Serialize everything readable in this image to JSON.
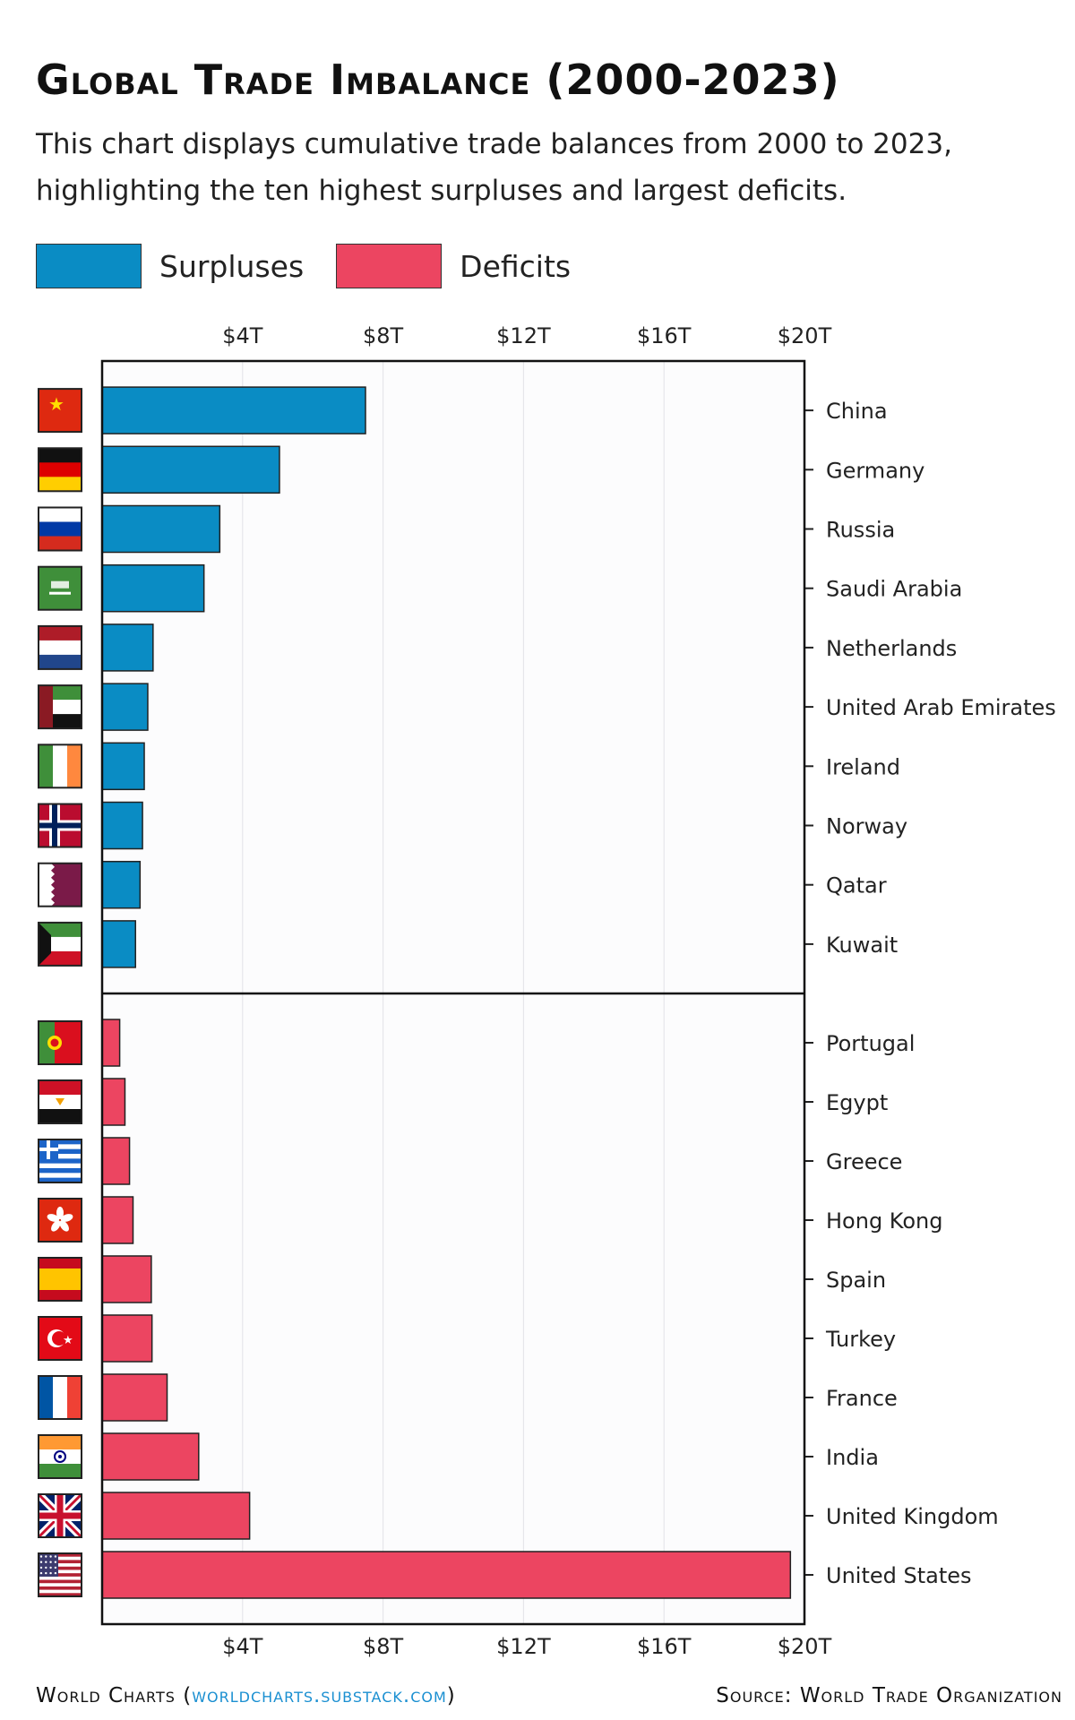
{
  "title": "Global Trade Imbalance (2000-2023)",
  "subtitle": "This chart displays cumulative trade balances from 2000 to 2023, highlighting the ten highest surpluses and largest deficits.",
  "legend": {
    "surpluses": "Surpluses",
    "deficits": "Deficits"
  },
  "colors": {
    "surpluses": "#0a8cc4",
    "deficits": "#ec4561"
  },
  "footer": {
    "left_prefix": "World Charts (",
    "left_link": "worldcharts.substack.com",
    "left_suffix": ")",
    "right": "Source: World Trade Organization"
  },
  "chart_data": {
    "type": "bar",
    "orientation": "horizontal",
    "xlim": [
      0,
      20
    ],
    "x_ticks": [
      "$4T",
      "$8T",
      "$12T",
      "$16T",
      "$20T"
    ],
    "x_tick_values": [
      4,
      8,
      12,
      16,
      20
    ],
    "grid": true,
    "series": [
      {
        "name": "Surpluses",
        "categories": [
          "China",
          "Germany",
          "Russia",
          "Saudi Arabia",
          "Netherlands",
          "United Arab Emirates",
          "Ireland",
          "Norway",
          "Qatar",
          "Kuwait"
        ],
        "flags": [
          "china-flag-icon",
          "germany-flag-icon",
          "russia-flag-icon",
          "saudi-arabia-flag-icon",
          "netherlands-flag-icon",
          "uae-flag-icon",
          "ireland-flag-icon",
          "norway-flag-icon",
          "qatar-flag-icon",
          "kuwait-flag-icon"
        ],
        "values": [
          7.5,
          5.05,
          3.35,
          2.9,
          1.45,
          1.3,
          1.2,
          1.15,
          1.08,
          0.95
        ]
      },
      {
        "name": "Deficits",
        "categories": [
          "Portugal",
          "Egypt",
          "Greece",
          "Hong Kong",
          "Spain",
          "Turkey",
          "France",
          "India",
          "United Kingdom",
          "United States"
        ],
        "flags": [
          "portugal-flag-icon",
          "egypt-flag-icon",
          "greece-flag-icon",
          "hong-kong-flag-icon",
          "spain-flag-icon",
          "turkey-flag-icon",
          "france-flag-icon",
          "india-flag-icon",
          "uk-flag-icon",
          "usa-flag-icon"
        ],
        "values": [
          0.5,
          0.65,
          0.78,
          0.88,
          1.4,
          1.42,
          1.85,
          2.75,
          4.2,
          19.6
        ]
      }
    ]
  }
}
